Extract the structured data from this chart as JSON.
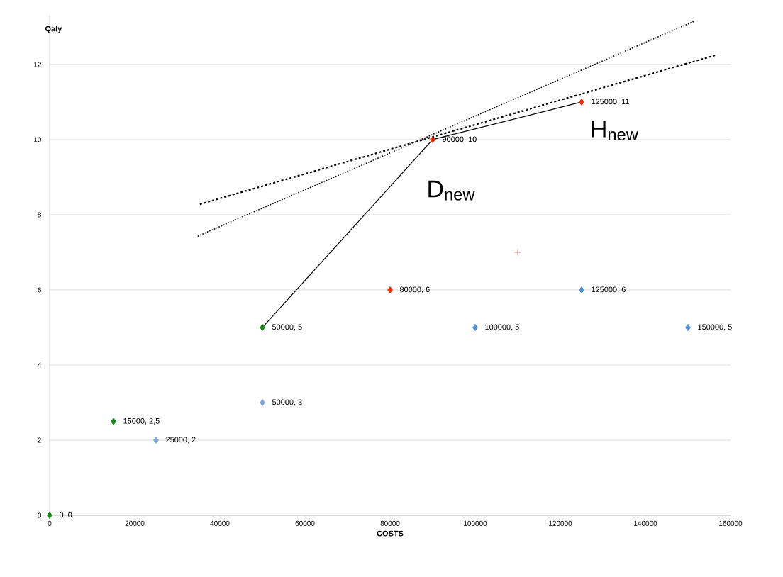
{
  "chart_data": {
    "type": "scatter",
    "xlabel": "COSTS",
    "ylabel": "Qaly",
    "xlim": [
      0,
      160000
    ],
    "ylim": [
      0,
      13.3
    ],
    "xticks": [
      0,
      20000,
      40000,
      60000,
      80000,
      100000,
      120000,
      140000,
      160000
    ],
    "yticks": [
      0,
      2,
      4,
      6,
      8,
      10,
      12
    ],
    "grid": "y",
    "series": [
      {
        "marker": "diamond",
        "color": "#1a8a1a",
        "x": [
          0,
          15000,
          50000
        ],
        "values": [
          0,
          2.5,
          5
        ],
        "value_labels": [
          "0, 0",
          "15000, 2,5",
          "50000, 5"
        ]
      },
      {
        "marker": "diamond",
        "color": "#7aaae0",
        "x": [
          25000,
          50000
        ],
        "values": [
          2,
          3
        ],
        "value_labels": [
          "25000, 2",
          "50000, 3"
        ]
      },
      {
        "marker": "diamond",
        "color": "#ff2a00",
        "x": [
          80000,
          90000,
          125000
        ],
        "values": [
          6,
          10,
          11
        ],
        "value_labels": [
          "80000, 6",
          "90000, 10",
          "125000, 11"
        ]
      },
      {
        "marker": "diamond",
        "color": "#4f8fd6",
        "x": [
          100000,
          125000,
          150000
        ],
        "values": [
          5,
          6,
          5
        ],
        "value_labels": [
          "100000, 5",
          "125000, 6",
          "150000, 5"
        ]
      },
      {
        "marker": "cross",
        "color": "#d08080",
        "x": [
          110000
        ],
        "values": [
          7
        ]
      },
      {
        "type": "line",
        "line_style": "solid",
        "color": "#000000",
        "x": [
          50000,
          90000,
          125000
        ],
        "values": [
          5,
          10,
          11
        ]
      },
      {
        "type": "line",
        "line_style": "dashed",
        "color": "#000000",
        "x": [
          35300,
          156600
        ],
        "values": [
          8.28,
          12.25
        ]
      },
      {
        "type": "line",
        "line_style": "dotted",
        "color": "#000000",
        "x": [
          34800,
          151500
        ],
        "values": [
          7.43,
          13.15
        ]
      }
    ],
    "annotations": [
      "D$_{new}$",
      "H$_{new}$"
    ]
  }
}
